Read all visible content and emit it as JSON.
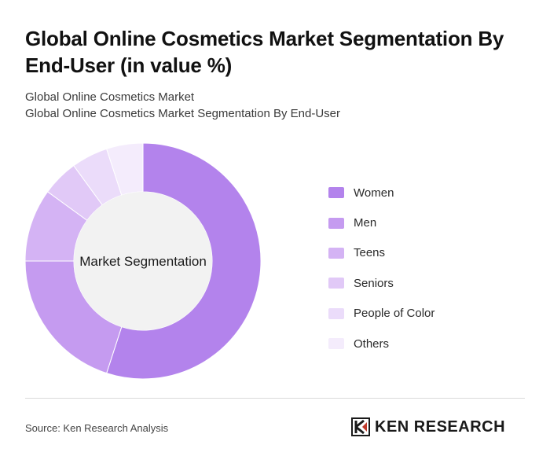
{
  "header": {
    "title": "Global Online Cosmetics Market Segmentation By End-User (in value %)",
    "subtitle_line1": "Global Online Cosmetics Market",
    "subtitle_line2": "Global Online Cosmetics Market Segmentation By End-User"
  },
  "chart_data": {
    "type": "pie",
    "center_label": "Market Segmentation",
    "categories": [
      "Women",
      "Men",
      "Teens",
      "Seniors",
      "People of Color",
      "Others"
    ],
    "values": [
      55,
      20,
      10,
      5,
      5,
      5
    ],
    "colors": [
      "#b383ec",
      "#c59bf0",
      "#d4b3f4",
      "#e1c9f7",
      "#ebdcfa",
      "#f4ecfc"
    ],
    "legend_position": "right"
  },
  "footer": {
    "source": "Source: Ken Research Analysis",
    "logo_text": "KEN RESEARCH"
  }
}
